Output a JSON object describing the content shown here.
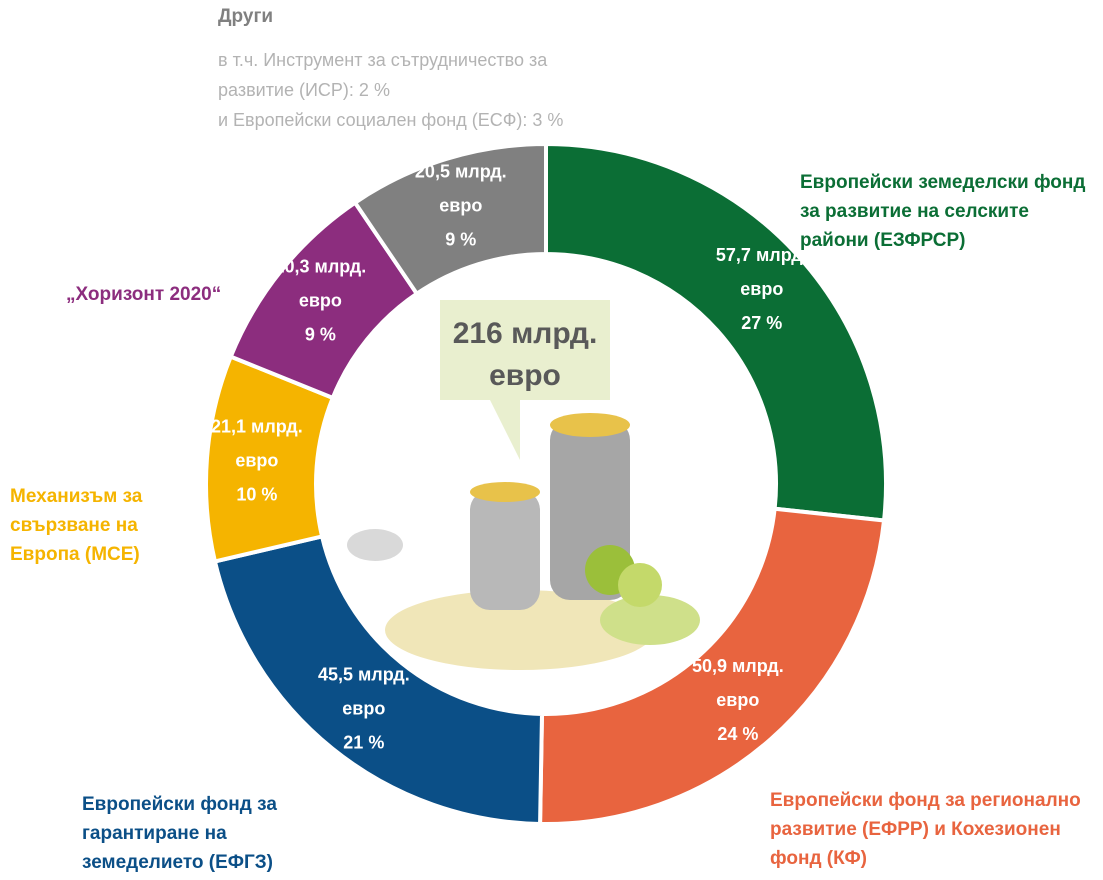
{
  "chart_data": {
    "type": "donut",
    "categories": [
      "Европейски земеделски фонд за развитие на селските райони (ЕЗФРСР)",
      "Европейски фонд за регионално развитие (ЕФРР) и Кохезионен фонд (КФ)",
      "Европейски фонд за гарантиране на земеделието (ЕФГЗ)",
      "Механизъм за свързване на Европа (МСЕ)",
      "„Хоризонт 2020“",
      "Други"
    ],
    "values": [
      57.7,
      50.9,
      45.5,
      21.1,
      20.3,
      20.5
    ],
    "value_labels": [
      "57,7 млрд.",
      "50,9 млрд.",
      "45,5 млрд.",
      "21,1 млрд.",
      "20,3 млрд.",
      "20,5 млрд."
    ],
    "unit": "евро",
    "percent_labels": [
      "27 %",
      "24 %",
      "21 %",
      "10 %",
      "9 %",
      "9 %"
    ],
    "colors": [
      "#0b6e35",
      "#e8643f",
      "#0b4f87",
      "#f5b400",
      "#8c2d7e",
      "#808080"
    ],
    "other_note": [
      "в т.ч. Инструмент за сътрудничество за",
      "развитие (ИСР): 2 %",
      "и Европейски социален фонд (ЕСФ): 3 %"
    ],
    "center_label": [
      "216 млрд.",
      "евро"
    ]
  }
}
